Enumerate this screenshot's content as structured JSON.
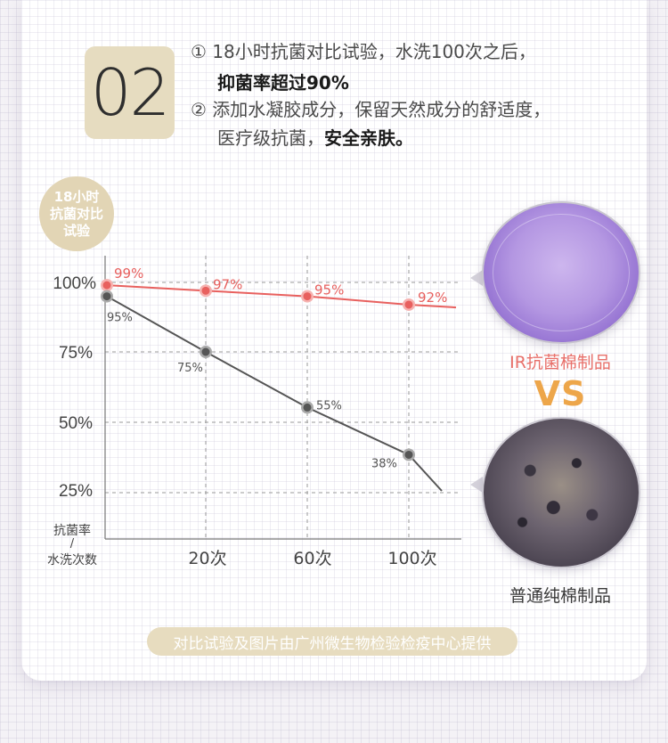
{
  "badge_number": "02",
  "lines": {
    "l1": "① 18小时抗菌对比试验，水洗100次之后，",
    "l2": "抑菌率超过90%",
    "l3": "② 添加水凝胶成分，保留天然成分的舒适度，",
    "l4_normal": "医疗级抗菌，",
    "l4_bold": "安全亲肤。"
  },
  "circle_label": [
    "18小时",
    "抗菌对比",
    "试验"
  ],
  "chart_data": {
    "type": "line",
    "x": [
      "0",
      "20次",
      "60次",
      "100次"
    ],
    "categories_printed": [
      "20次",
      "60次",
      "100次"
    ],
    "yticks": [
      "100%",
      "75%",
      "50%",
      "25%"
    ],
    "ylabel": "抗菌率",
    "xlabel": "水洗次数",
    "axis_slash": "/",
    "series": [
      {
        "name": "IR抗菌棉制品",
        "values": [
          99,
          97,
          95,
          92
        ],
        "labels": [
          "99%",
          "97%",
          "95%",
          "92%"
        ],
        "color": "#e8605e"
      },
      {
        "name": "普通纯棉制品",
        "values": [
          95,
          75,
          55,
          38
        ],
        "labels": [
          "95%",
          "75%",
          "55%",
          "38%"
        ],
        "color": "#555555"
      }
    ]
  },
  "labels": {
    "ir": "IR抗菌棉制品",
    "vs": "VS",
    "plain": "普通纯棉制品"
  },
  "footer": "对比试验及图片由广州微生物检验检疫中心提供",
  "colors": {
    "red": "#e8605e",
    "dark": "#555555",
    "beige": "#e2d5b5",
    "orange": "#eda64a"
  }
}
